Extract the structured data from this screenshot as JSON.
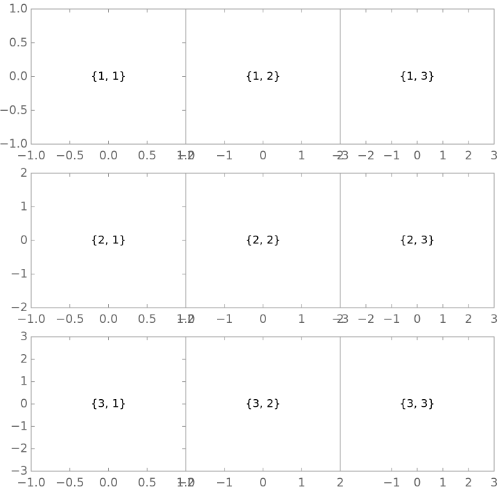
{
  "chart_data": [
    {
      "type": "frame",
      "label": "{1, 1}",
      "xlim": [
        -1,
        1
      ],
      "ylim": [
        -1,
        1
      ],
      "xticks": [
        {
          "value": -1,
          "label": "−1.0"
        },
        {
          "value": -0.5,
          "label": "−0.5"
        },
        {
          "value": 0,
          "label": "0.0"
        },
        0.5,
        {
          "value": 1,
          "label": "1.0"
        }
      ],
      "yticks": [
        {
          "value": -1,
          "label": "−1.0"
        },
        {
          "value": -0.5,
          "label": "−0.5"
        },
        {
          "value": 0,
          "label": "0.0"
        },
        0.5,
        {
          "value": 1,
          "label": "1.0"
        }
      ]
    },
    {
      "type": "frame",
      "label": "{1, 2}",
      "xlim": [
        -2,
        2
      ],
      "ylim": [
        -1,
        1
      ],
      "xticks": [
        {
          "value": -2,
          "label": "−2"
        },
        {
          "value": -1,
          "label": "−1"
        },
        0,
        1,
        2
      ]
    },
    {
      "type": "frame",
      "label": "{1, 3}",
      "xlim": [
        -3,
        3
      ],
      "ylim": [
        -1,
        1
      ],
      "xticks": [
        {
          "value": -3,
          "label": "−3"
        },
        {
          "value": -2,
          "label": "−2"
        },
        {
          "value": -1,
          "label": "−1"
        },
        0,
        1,
        2,
        3
      ]
    },
    {
      "type": "frame",
      "label": "{2, 1}",
      "xlim": [
        -1,
        1
      ],
      "ylim": [
        -2,
        2
      ],
      "xticks": [
        {
          "value": -1,
          "label": "−1.0"
        },
        {
          "value": -0.5,
          "label": "−0.5"
        },
        {
          "value": 0,
          "label": "0.0"
        },
        0.5,
        {
          "value": 1,
          "label": "1.0"
        }
      ],
      "yticks": [
        {
          "value": -2,
          "label": "−2"
        },
        {
          "value": -1,
          "label": "−1"
        },
        0,
        1,
        2
      ]
    },
    {
      "type": "frame",
      "label": "{2, 2}",
      "xlim": [
        -2,
        2
      ],
      "ylim": [
        -2,
        2
      ],
      "xticks": [
        {
          "value": -2,
          "label": "−2"
        },
        {
          "value": -1,
          "label": "−1"
        },
        0,
        1,
        2
      ]
    },
    {
      "type": "frame",
      "label": "{2, 3}",
      "xlim": [
        -3,
        3
      ],
      "ylim": [
        -2,
        2
      ],
      "xticks": [
        {
          "value": -3,
          "label": "−3"
        },
        {
          "value": -2,
          "label": "−2"
        },
        {
          "value": -1,
          "label": "−1"
        },
        0,
        1,
        2,
        3
      ]
    },
    {
      "type": "frame",
      "label": "{3, 1}",
      "xlim": [
        -1,
        1
      ],
      "ylim": [
        -3,
        3
      ],
      "xticks": [
        {
          "value": -1,
          "label": "−1.0"
        },
        {
          "value": -0.5,
          "label": "−0.5"
        },
        {
          "value": 0,
          "label": "0.0"
        },
        0.5,
        {
          "value": 1,
          "label": "1.0"
        }
      ],
      "yticks": [
        {
          "value": -3,
          "label": "−3"
        },
        {
          "value": -2,
          "label": "−2"
        },
        {
          "value": -1,
          "label": "−1"
        },
        0,
        1,
        2,
        3
      ]
    },
    {
      "type": "frame",
      "label": "{3, 2}",
      "xlim": [
        -2,
        2
      ],
      "ylim": [
        -3,
        3
      ],
      "xticks": [
        {
          "value": -2,
          "label": "−2"
        },
        {
          "value": -1,
          "label": "−1"
        },
        0,
        1,
        2
      ]
    },
    {
      "type": "frame",
      "label": "{3, 3}",
      "xlim": [
        -3,
        3
      ],
      "ylim": [
        -3,
        3
      ],
      "xticks": [
        {
          "value": -1,
          "label": "−1"
        },
        0,
        1,
        2,
        3
      ]
    }
  ]
}
